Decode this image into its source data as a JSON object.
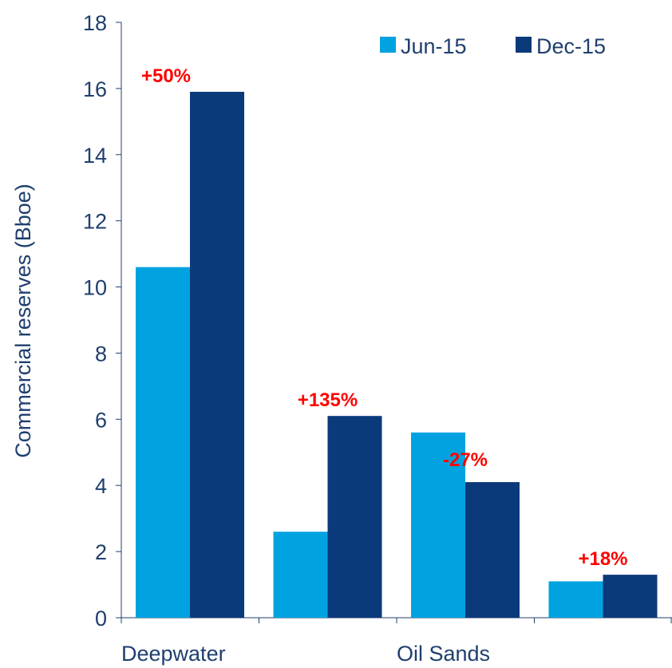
{
  "chart_data": {
    "type": "bar",
    "categories": [
      "Deepwater",
      "",
      "Oil Sands",
      ""
    ],
    "series": [
      {
        "name": "Jun-15",
        "color": "#00a3e0",
        "values": [
          10.6,
          2.6,
          5.6,
          1.1
        ]
      },
      {
        "name": "Dec-15",
        "color": "#0b3a7a",
        "values": [
          15.9,
          6.1,
          4.1,
          1.3
        ]
      }
    ],
    "annotations": [
      "+50%",
      "+135%",
      "-27%",
      "+18%"
    ],
    "xlabel": "",
    "ylabel": "Commercial reserves (Bboe)",
    "ylim": [
      0,
      18
    ],
    "yticks": [
      0,
      2,
      4,
      6,
      8,
      10,
      12,
      14,
      16,
      18
    ],
    "grid": false,
    "legend_position": "top-right",
    "axis_color": "#1f3f6e",
    "annotation_color": "#ff0000"
  }
}
